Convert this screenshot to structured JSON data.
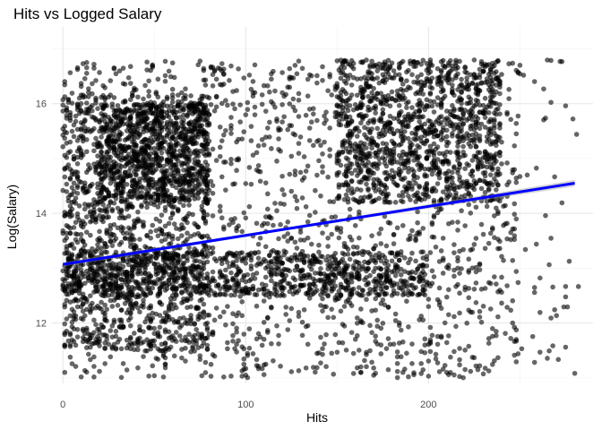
{
  "chart_data": {
    "type": "scatter",
    "title": "Hits vs Logged Salary",
    "xlabel": "Hits",
    "ylabel": "Log(Salary)",
    "xlim": [
      -6,
      290
    ],
    "ylim": [
      10.9,
      17.4
    ],
    "x_ticks": [
      0,
      100,
      200
    ],
    "x_tick_labels": [
      "0",
      "100",
      "200"
    ],
    "y_ticks": [
      12,
      14,
      16
    ],
    "y_tick_labels": [
      "12",
      "14",
      "16"
    ],
    "grid": true,
    "legend": "none",
    "point_color": "#000000",
    "point_opacity": 0.6,
    "point_count_approx": 6000,
    "trend_line": {
      "method": "linear fit with confidence band",
      "color": "#0000ff",
      "band_color": "#999999",
      "x": [
        0,
        280
      ],
      "y": [
        13.07,
        14.55
      ]
    },
    "point_clusters": [
      {
        "x_range": [
          0,
          300
        ],
        "y_range": [
          11.0,
          16.8
        ],
        "weight": 0.35
      },
      {
        "x_range": [
          0,
          80
        ],
        "y_range": [
          11.5,
          16.2
        ],
        "weight": 0.2
      },
      {
        "x_range": [
          20,
          80
        ],
        "y_range": [
          14.2,
          16.0
        ],
        "weight": 0.12
      },
      {
        "x_range": [
          0,
          200
        ],
        "y_range": [
          12.5,
          13.3
        ],
        "weight": 0.15
      },
      {
        "x_range": [
          150,
          240
        ],
        "y_range": [
          14.2,
          16.8
        ],
        "weight": 0.18
      }
    ]
  }
}
